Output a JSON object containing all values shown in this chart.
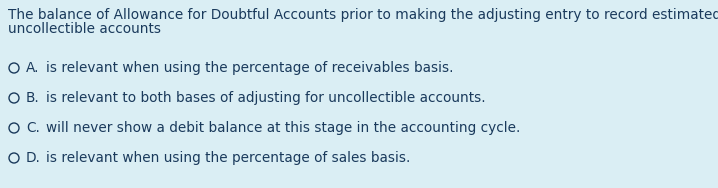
{
  "background_color": "#daeef4",
  "text_color": "#1a3a5c",
  "question_line1": "The balance of Allowance for Doubtful Accounts prior to making the adjusting entry to record estimated",
  "question_line2": "uncollectible accounts",
  "options": [
    {
      "label": "A.",
      "text": "is relevant when using the percentage of receivables basis."
    },
    {
      "label": "B.",
      "text": "is relevant to both bases of adjusting for uncollectible accounts."
    },
    {
      "label": "C.",
      "text": "will never show a debit balance at this stage in the accounting cycle."
    },
    {
      "label": "D.",
      "text": "is relevant when using the percentage of sales basis."
    }
  ],
  "question_fontsize": 9.8,
  "option_fontsize": 9.8,
  "fig_width": 7.18,
  "fig_height": 1.88,
  "dpi": 100
}
